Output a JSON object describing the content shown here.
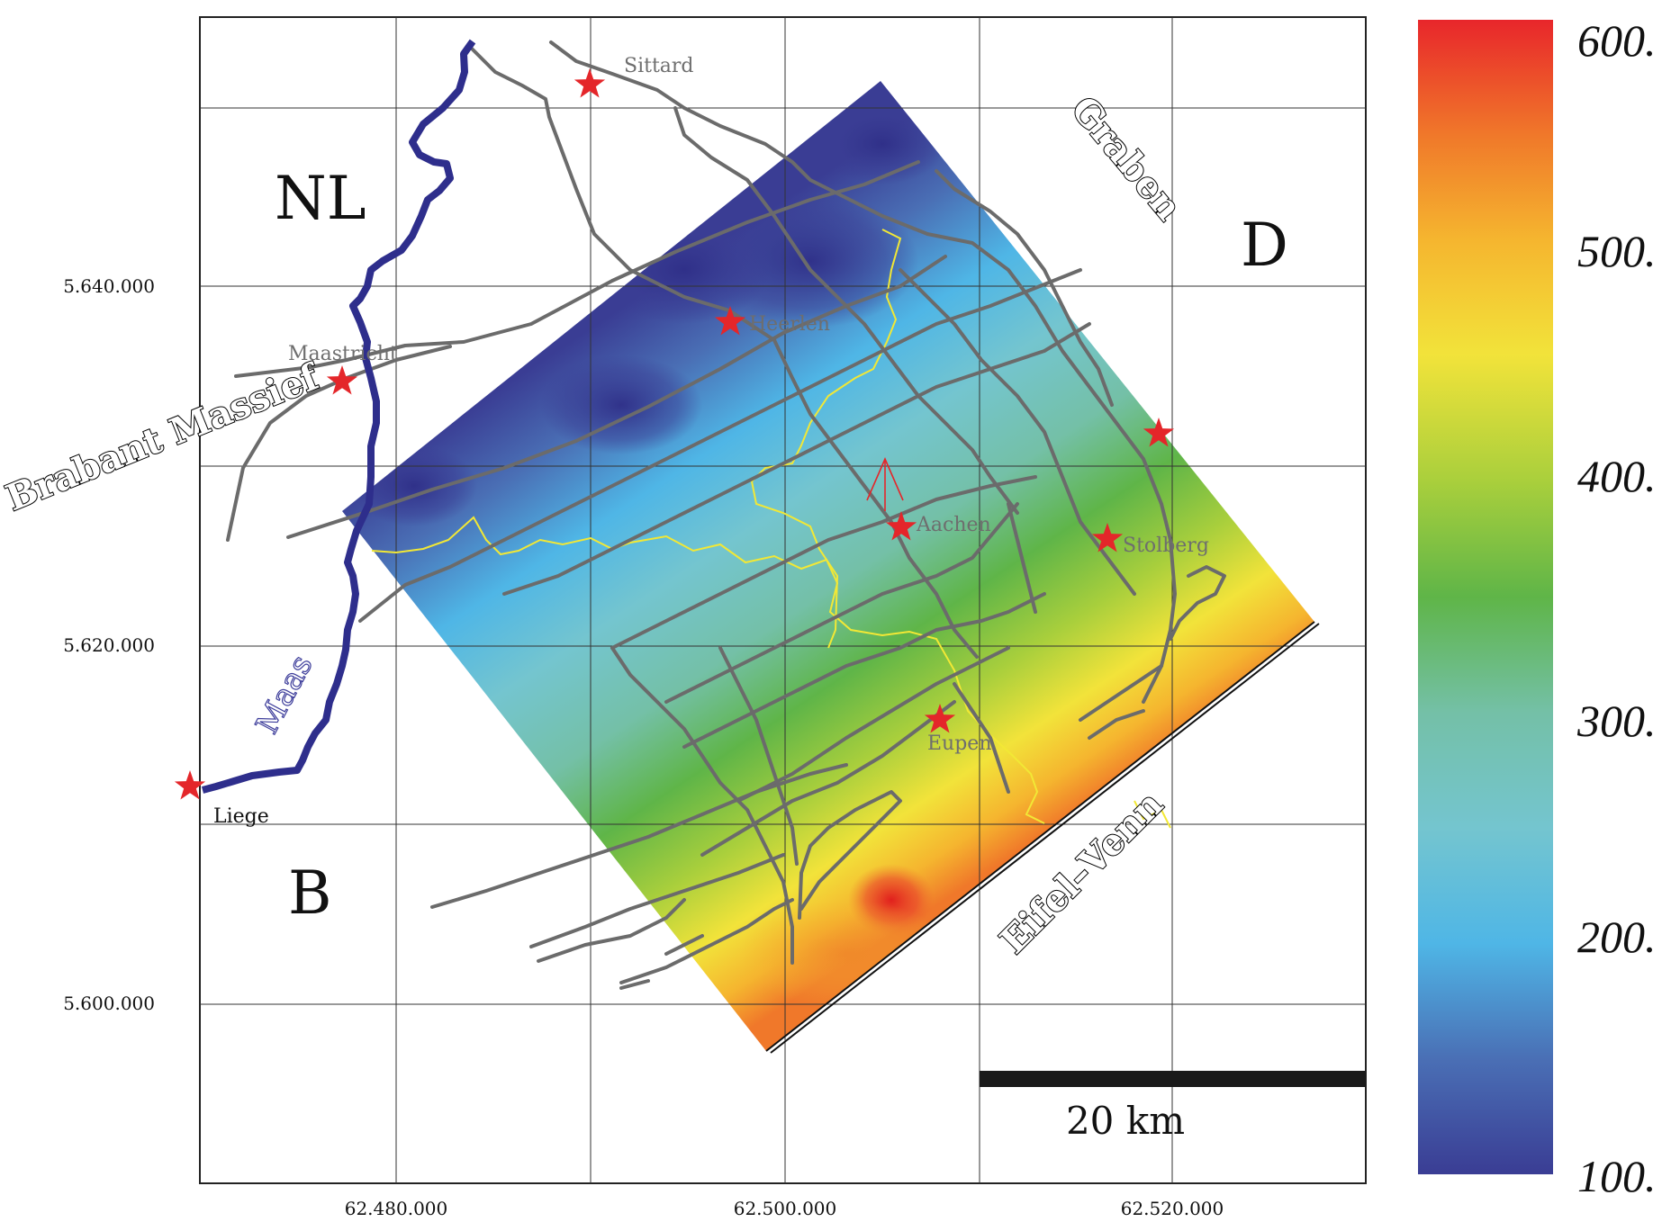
{
  "map": {
    "x_ticks": [
      "62.480.000",
      "62.500.000",
      "62.520.000"
    ],
    "y_ticks": [
      "5.640.000",
      "5.620.000",
      "5.600.000"
    ],
    "countries": {
      "nl": "NL",
      "d": "D",
      "b": "B"
    },
    "regions": {
      "brabant": "Brabant Massief",
      "graben": "Graben",
      "eifel": "Eifel–Venn"
    },
    "river": "Maas",
    "cities": [
      {
        "key": "sittard",
        "name": "Sittard"
      },
      {
        "key": "maastricht",
        "name": "Maastricht"
      },
      {
        "key": "heerlen",
        "name": "Heerlen"
      },
      {
        "key": "aachen",
        "name": "Aachen"
      },
      {
        "key": "stolberg",
        "name": "Stolberg"
      },
      {
        "key": "eupen",
        "name": "Eupen"
      },
      {
        "key": "liege",
        "name": "Liege"
      },
      {
        "key": "unnamed",
        "name": ""
      }
    ],
    "scalebar_label": "20 km"
  },
  "colorbar": {
    "ticks": [
      "600.",
      "500.",
      "400.",
      "300.",
      "200.",
      "100."
    ],
    "stops": [
      "#e8262b",
      "#f0782a",
      "#f5b52f",
      "#f2e33a",
      "#a9cf3c",
      "#5fb548",
      "#74c0a7",
      "#74c5cf",
      "#4fb6e6",
      "#4a6fb5",
      "#3a3d94"
    ]
  },
  "colors": {
    "faults": "#6b6b6b",
    "river": "#2e2e8c",
    "border": "#f2e835",
    "stars": "#e4262a"
  }
}
